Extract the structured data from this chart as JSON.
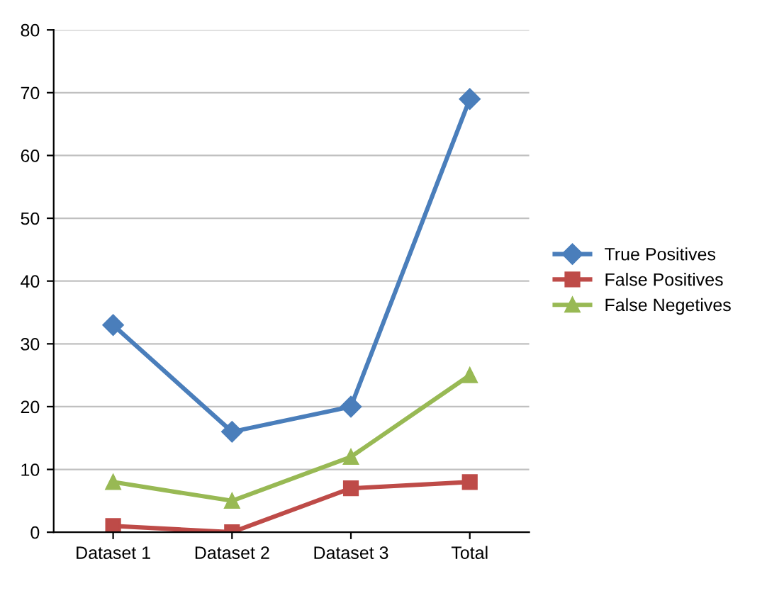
{
  "chart_data": {
    "type": "line",
    "categories": [
      "Dataset 1",
      "Dataset 2",
      "Dataset 3",
      "Total"
    ],
    "series": [
      {
        "name": "True Positives",
        "color": "#4a7ebb",
        "marker": "diamond",
        "values": [
          33,
          16,
          20,
          69
        ]
      },
      {
        "name": "False Positives",
        "color": "#be4b48",
        "marker": "square",
        "values": [
          1,
          0,
          7,
          8
        ]
      },
      {
        "name": "False Negetives",
        "color": "#98b954",
        "marker": "triangle",
        "values": [
          8,
          5,
          12,
          25
        ]
      }
    ],
    "ylim": [
      0,
      80
    ],
    "yticks": [
      0,
      10,
      20,
      30,
      40,
      50,
      60,
      70,
      80
    ],
    "grid": "y",
    "legend": "right",
    "line_style": "solid"
  }
}
